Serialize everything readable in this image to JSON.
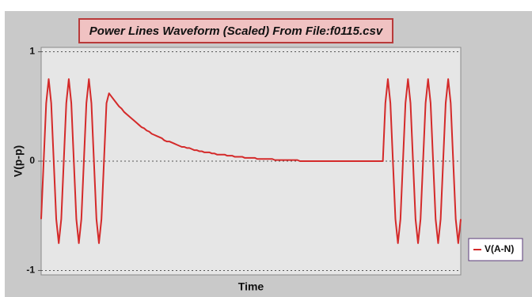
{
  "chart_data": {
    "type": "line",
    "title": "Power Lines Waveform (Scaled) From File:f0115.csv",
    "x_label": "Time",
    "y_label": "V(p-p)",
    "ylim": [
      -1.04,
      1.04
    ],
    "yticks": [
      -1,
      0,
      1
    ],
    "grid": true,
    "legend": "right",
    "series": [
      {
        "name": "V(A-N)",
        "color": "#d42a2a",
        "values": [
          -0.53,
          0,
          0.53,
          0.75,
          0.53,
          0,
          -0.53,
          -0.75,
          -0.53,
          0,
          0.53,
          0.75,
          0.53,
          0,
          -0.53,
          -0.75,
          -0.53,
          0,
          0.53,
          0.75,
          0.53,
          0,
          -0.53,
          -0.75,
          -0.53,
          0,
          0.53,
          0.62,
          0.59,
          0.56,
          0.53,
          0.5,
          0.48,
          0.45,
          0.43,
          0.41,
          0.39,
          0.37,
          0.35,
          0.33,
          0.31,
          0.3,
          0.28,
          0.27,
          0.25,
          0.24,
          0.23,
          0.22,
          0.21,
          0.19,
          0.18,
          0.18,
          0.17,
          0.16,
          0.15,
          0.14,
          0.13,
          0.13,
          0.12,
          0.12,
          0.11,
          0.1,
          0.1,
          0.09,
          0.09,
          0.08,
          0.08,
          0.08,
          0.07,
          0.07,
          0.06,
          0.06,
          0.06,
          0.06,
          0.05,
          0.05,
          0.05,
          0.04,
          0.04,
          0.04,
          0.04,
          0.03,
          0.03,
          0.03,
          0.03,
          0.03,
          0.02,
          0.02,
          0.02,
          0.02,
          0.02,
          0.02,
          0.02,
          0.01,
          0.01,
          0.01,
          0.01,
          0.01,
          0.01,
          0.01,
          0.01,
          0.01,
          0.01,
          0,
          0,
          0,
          0,
          0,
          0,
          0,
          0,
          0,
          0,
          0,
          0,
          0,
          0,
          0,
          0,
          0,
          0,
          0,
          0,
          0,
          0,
          0,
          0,
          0,
          0,
          0,
          0,
          0,
          0,
          0,
          0,
          0,
          0,
          0.53,
          0.75,
          0.53,
          0,
          -0.53,
          -0.75,
          -0.53,
          0,
          0.53,
          0.75,
          0.53,
          0,
          -0.53,
          -0.75,
          -0.53,
          0,
          0.53,
          0.75,
          0.53,
          0,
          -0.53,
          -0.75,
          -0.53,
          0,
          0.53,
          0.75,
          0.53,
          0,
          -0.53,
          -0.75,
          -0.53
        ]
      }
    ]
  }
}
